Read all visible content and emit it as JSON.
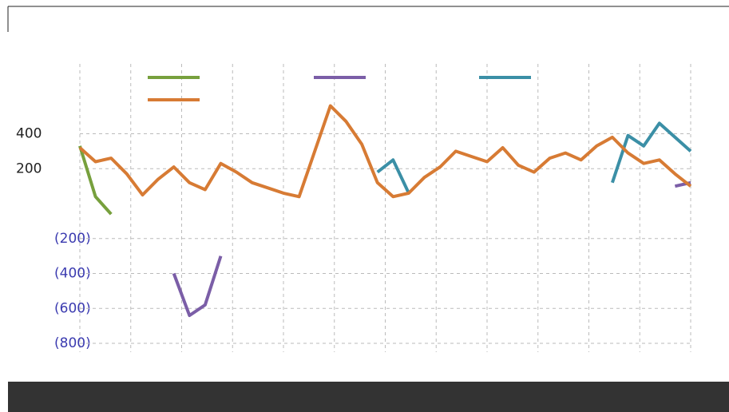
{
  "chart_data": {
    "type": "line",
    "categories": [
      null,
      null,
      null,
      null,
      null,
      null,
      null,
      null,
      null,
      null,
      null,
      null,
      null,
      null,
      null,
      null,
      null,
      null,
      null,
      null,
      null,
      null,
      null,
      null,
      null,
      null,
      null,
      null,
      null,
      null,
      null,
      null,
      null,
      null,
      null,
      null,
      null,
      null,
      null,
      null
    ],
    "series": [
      {
        "color": "#77a03d",
        "values": [
          330,
          40,
          -60,
          null,
          null,
          null,
          null,
          null,
          null,
          null,
          null,
          null,
          null,
          null,
          null,
          null,
          null,
          null,
          null,
          null,
          null,
          null,
          null,
          null,
          null,
          null,
          null,
          null,
          null,
          null,
          null,
          null,
          null,
          null,
          null,
          null,
          null,
          null,
          null,
          null
        ]
      },
      {
        "color": "#7b5ea7",
        "values": [
          null,
          null,
          null,
          null,
          null,
          null,
          -400,
          -640,
          -580,
          -300,
          null,
          null,
          null,
          null,
          null,
          null,
          null,
          null,
          null,
          null,
          null,
          null,
          null,
          null,
          null,
          null,
          null,
          null,
          null,
          null,
          null,
          null,
          null,
          null,
          null,
          null,
          null,
          null,
          100,
          120
        ]
      },
      {
        "color": "#3b8fa6",
        "values": [
          null,
          null,
          null,
          null,
          null,
          null,
          null,
          null,
          null,
          null,
          null,
          null,
          null,
          null,
          null,
          null,
          null,
          null,
          null,
          180,
          250,
          60,
          null,
          null,
          null,
          null,
          null,
          null,
          null,
          null,
          null,
          null,
          null,
          null,
          120,
          390,
          330,
          460,
          380,
          300
        ]
      },
      {
        "color": "#d77b34",
        "values": [
          320,
          240,
          260,
          170,
          50,
          140,
          210,
          120,
          80,
          230,
          180,
          120,
          90,
          60,
          40,
          300,
          560,
          470,
          340,
          120,
          40,
          60,
          150,
          210,
          300,
          270,
          240,
          320,
          220,
          180,
          260,
          290,
          250,
          330,
          380,
          290,
          230,
          250,
          170,
          100
        ]
      }
    ],
    "ylim": [
      -850,
      800
    ],
    "yticks": [
      {
        "value": -800,
        "label": "(800)"
      },
      {
        "value": -600,
        "label": "(600)"
      },
      {
        "value": -400,
        "label": "(400)"
      },
      {
        "value": -200,
        "label": "(200)"
      },
      200,
      400
    ],
    "grid": true
  }
}
